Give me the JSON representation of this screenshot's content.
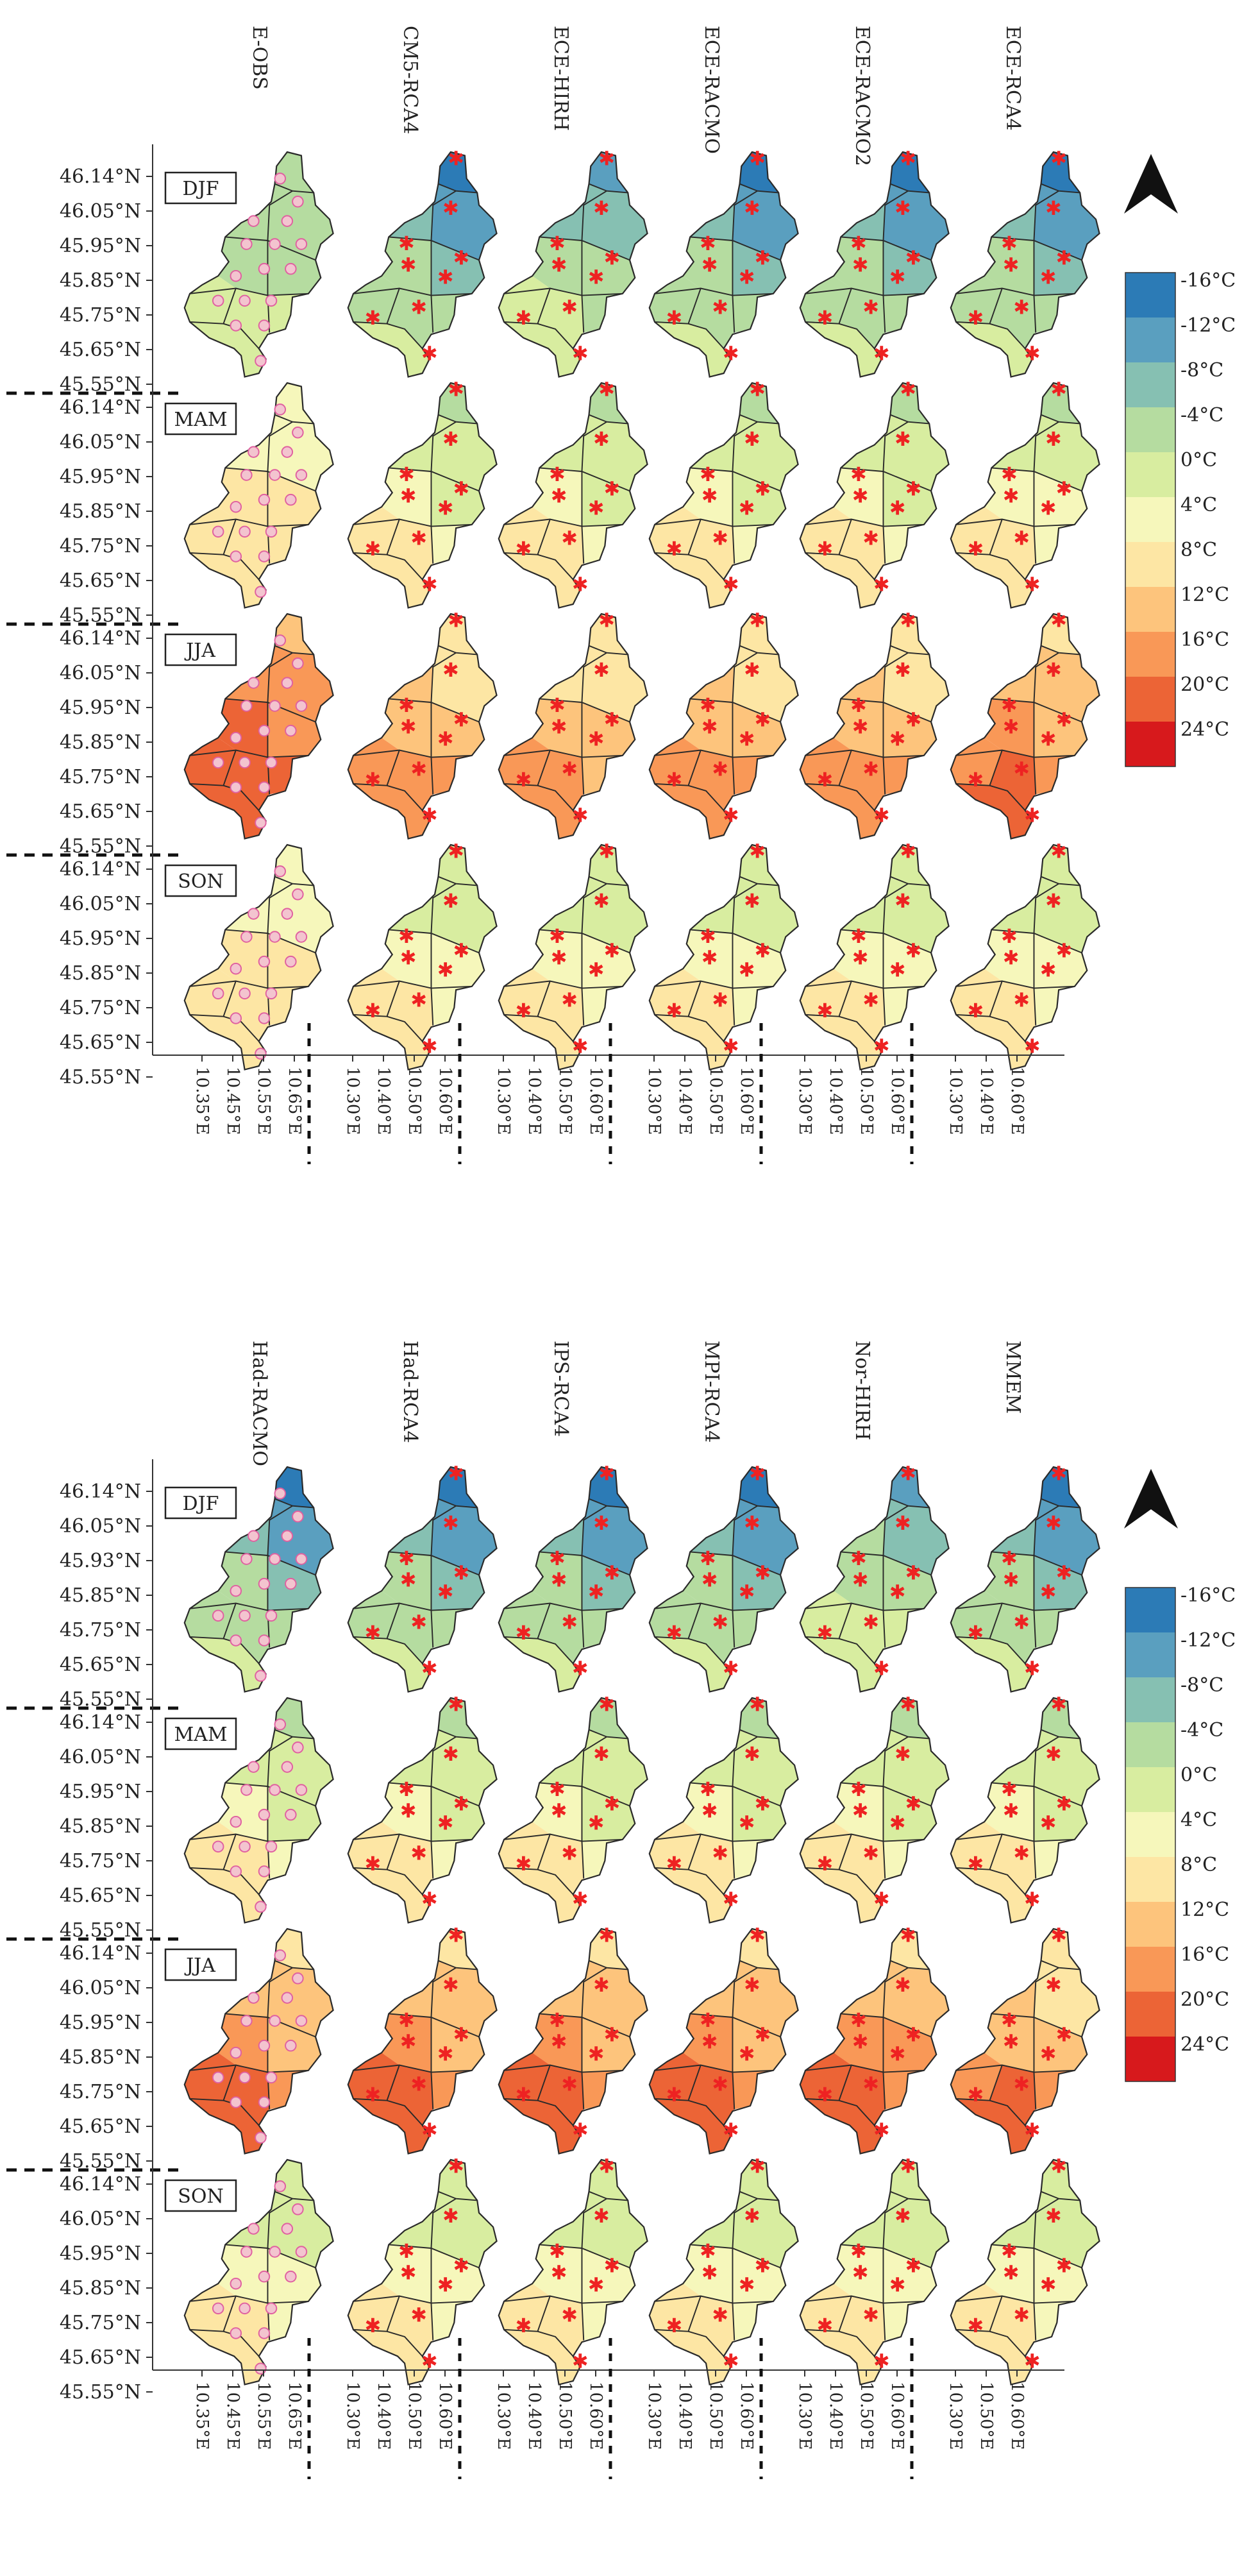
{
  "figure_title": "",
  "chart_data": [
    {
      "type": "map-grid",
      "panel": "top",
      "variable": "Mean temperature (°C)",
      "models": [
        "E-OBS",
        "CM5-RCA4",
        "ECE-HIRH",
        "ECE-RACMO",
        "ECE-RACMO2",
        "ECE-RCA4"
      ],
      "seasons": [
        "DJF",
        "MAM",
        "JJA",
        "SON"
      ],
      "latitude_ticks": [
        "46.14°N",
        "46.05°N",
        "45.95°N",
        "45.85°N",
        "45.75°N",
        "45.65°N",
        "45.55°N"
      ],
      "longitude_ticks_obs": [
        "10.35°E",
        "10.45°E",
        "10.55°E",
        "10.65°E"
      ],
      "longitude_ticks_model": [
        "10.30°E",
        "10.40°E",
        "10.50°E",
        "10.60°E"
      ],
      "longitude_ticks_last": [
        "10.30°E",
        "10.40°E",
        "10.60°E"
      ],
      "cell_values": {
        "DJF": [
          [
            -4,
            -4,
            -4,
            -4,
            -2,
            0,
            0,
            0,
            1
          ],
          [
            -14,
            -10,
            -8,
            -6,
            -4,
            -3,
            -2,
            -2,
            -1
          ],
          [
            -12,
            -8,
            -6,
            -4,
            -3,
            -2,
            -1,
            -1,
            0
          ],
          [
            -14,
            -10,
            -8,
            -6,
            -4,
            -3,
            -2,
            -2,
            -1
          ],
          [
            -14,
            -10,
            -8,
            -7,
            -4,
            -3,
            -2,
            -2,
            -1
          ],
          [
            -14,
            -10,
            -8,
            -6,
            -4,
            -3,
            -2,
            -2,
            -1
          ]
        ],
        "MAM": [
          [
            3,
            5,
            5,
            7,
            8,
            10,
            9,
            9,
            9
          ],
          [
            -2,
            0,
            1,
            2,
            3,
            5,
            8,
            8,
            8
          ],
          [
            -2,
            0,
            1,
            2,
            3,
            5,
            8,
            9,
            8
          ],
          [
            -2,
            0,
            1,
            2,
            3,
            5,
            7,
            8,
            8
          ],
          [
            -2,
            0,
            1,
            2,
            4,
            5,
            8,
            9,
            8
          ],
          [
            -2,
            0,
            1,
            3,
            4,
            6,
            8,
            9,
            8
          ]
        ],
        "JJA": [
          [
            13,
            15,
            17,
            18,
            19,
            20,
            21,
            22,
            22
          ],
          [
            8,
            10,
            11,
            12,
            13,
            15,
            16,
            17,
            18
          ],
          [
            8,
            9,
            10,
            11,
            12,
            13,
            16,
            17,
            17
          ],
          [
            8,
            10,
            11,
            12,
            13,
            15,
            16,
            17,
            18
          ],
          [
            8,
            10,
            11,
            12,
            13,
            15,
            16,
            17,
            17
          ],
          [
            10,
            12,
            13,
            14,
            15,
            16,
            18,
            19,
            20
          ]
        ],
        "SON": [
          [
            4,
            5,
            6,
            7,
            8,
            9,
            10,
            10,
            10
          ],
          [
            0,
            1,
            2,
            3,
            4,
            6,
            8,
            9,
            8
          ],
          [
            0,
            1,
            2,
            3,
            4,
            6,
            8,
            9,
            8
          ],
          [
            0,
            1,
            2,
            3,
            4,
            6,
            8,
            9,
            8
          ],
          [
            0,
            1,
            2,
            3,
            4,
            6,
            8,
            9,
            8
          ],
          [
            0,
            1,
            2,
            3,
            4,
            6,
            8,
            9,
            8
          ]
        ]
      }
    },
    {
      "type": "map-grid",
      "panel": "bottom",
      "variable": "Mean temperature (°C)",
      "models": [
        "Had-RACMO",
        "Had-RCA4",
        "IPS-RCA4",
        "MPI-RCA4",
        "Nor-HIRH",
        "MMEM"
      ],
      "seasons": [
        "DJF",
        "MAM",
        "JJA",
        "SON"
      ],
      "latitude_ticks_djf": [
        "46.14°N",
        "46.05°N",
        "45.93°N",
        "45.85°N",
        "45.75°N",
        "45.65°N",
        "45.55°N"
      ],
      "latitude_ticks": [
        "46.14°N",
        "46.05°N",
        "45.95°N",
        "45.85°N",
        "45.75°N",
        "45.65°N",
        "45.55°N"
      ],
      "longitude_ticks_obs": [
        "10.35°E",
        "10.45°E",
        "10.55°E",
        "10.65°E"
      ],
      "longitude_ticks_model": [
        "10.30°E",
        "10.40°E",
        "10.50°E",
        "10.60°E"
      ],
      "longitude_ticks_last": [
        "10.30°E",
        "10.50°E",
        "10.60°E"
      ],
      "cell_values": {
        "DJF": [
          [
            -14,
            -10,
            -8,
            -6,
            -4,
            -3,
            -2,
            -2,
            -1
          ],
          [
            -14,
            -10,
            -8,
            -6,
            -4,
            -3,
            -2,
            -2,
            -1
          ],
          [
            -14,
            -10,
            -8,
            -7,
            -4,
            -3,
            -2,
            -2,
            -1
          ],
          [
            -14,
            -10,
            -8,
            -6,
            -4,
            -3,
            -2,
            -2,
            -1
          ],
          [
            -12,
            -6,
            -4,
            -3,
            -2,
            -1,
            0,
            0,
            1
          ],
          [
            -14,
            -10,
            -8,
            -6,
            -4,
            -3,
            -2,
            -2,
            -1
          ]
        ],
        "MAM": [
          [
            -2,
            0,
            1,
            2,
            3,
            5,
            8,
            9,
            8
          ],
          [
            -2,
            0,
            1,
            2,
            3,
            5,
            8,
            9,
            8
          ],
          [
            -2,
            0,
            1,
            2,
            3,
            5,
            8,
            9,
            8
          ],
          [
            -2,
            0,
            1,
            2,
            3,
            5,
            8,
            9,
            8
          ],
          [
            -2,
            0,
            1,
            2,
            3,
            5,
            8,
            9,
            8
          ],
          [
            -2,
            0,
            1,
            2,
            3,
            5,
            8,
            9,
            8
          ]
        ],
        "JJA": [
          [
            10,
            12,
            13,
            14,
            15,
            17,
            19,
            20,
            21
          ],
          [
            10,
            12,
            13,
            14,
            15,
            17,
            19,
            21,
            22
          ],
          [
            10,
            12,
            13,
            14,
            15,
            17,
            20,
            21,
            22
          ],
          [
            10,
            12,
            13,
            14,
            15,
            17,
            19,
            21,
            22
          ],
          [
            10,
            12,
            13,
            15,
            16,
            17,
            20,
            21,
            22
          ],
          [
            8,
            10,
            12,
            13,
            14,
            16,
            18,
            19,
            20
          ]
        ],
        "SON": [
          [
            0,
            1,
            2,
            3,
            4,
            6,
            8,
            9,
            8
          ],
          [
            0,
            1,
            2,
            3,
            4,
            6,
            8,
            9,
            8
          ],
          [
            0,
            1,
            2,
            3,
            4,
            6,
            8,
            9,
            8
          ],
          [
            0,
            1,
            2,
            3,
            4,
            6,
            8,
            9,
            8
          ],
          [
            0,
            1,
            2,
            3,
            4,
            6,
            8,
            9,
            8
          ],
          [
            0,
            1,
            2,
            3,
            4,
            6,
            8,
            9,
            8
          ]
        ]
      }
    }
  ],
  "legend": {
    "labels": [
      "-16°C",
      "-12°C",
      "-8°C",
      "-4°C",
      "0°C",
      "4°C",
      "8°C",
      "12°C",
      "16°C",
      "20°C",
      "24°C"
    ],
    "values": [
      -16,
      -12,
      -8,
      -4,
      0,
      4,
      8,
      12,
      16,
      20,
      24
    ],
    "colors": [
      "#2c7bb6",
      "#5a9fbf",
      "#86c0b2",
      "#b5dca0",
      "#d8eda0",
      "#f6f7bb",
      "#fde6a4",
      "#fdc47c",
      "#f99857",
      "#ec6436",
      "#d7191c"
    ]
  },
  "north_arrow_label": "north arrow",
  "styles": {
    "cell_border": "#2a2a2a",
    "marker_model": "#ee2222",
    "marker_obs": "#e060a0",
    "obs_dot_fill": "#f3c4cf"
  }
}
